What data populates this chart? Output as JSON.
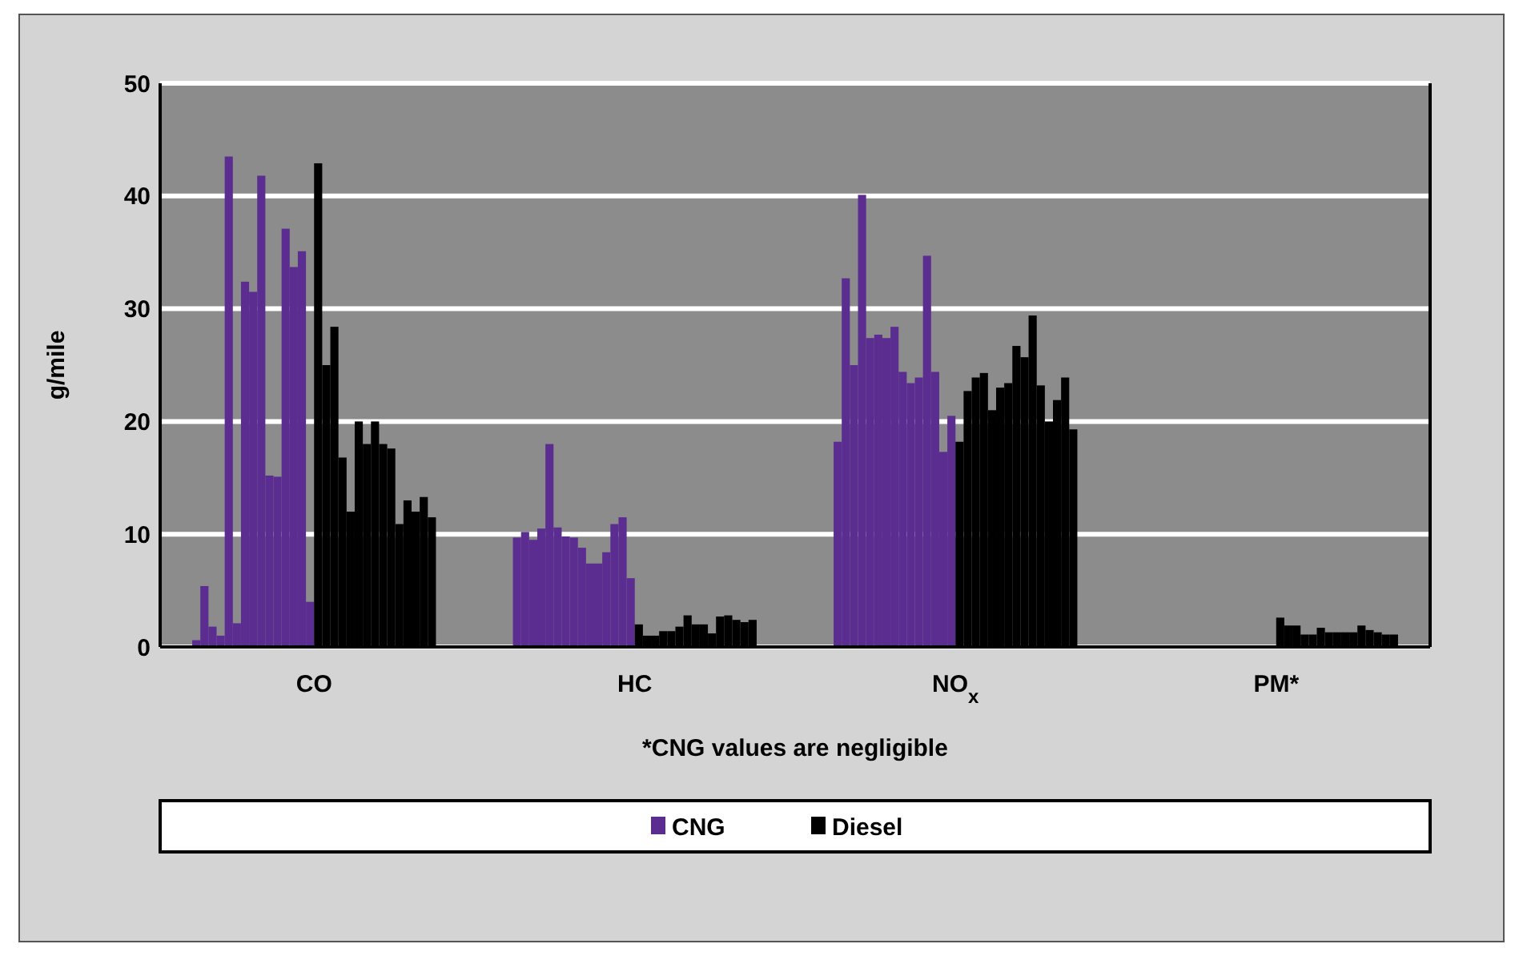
{
  "chart_data": {
    "type": "bar",
    "xlabel": "*CNG values are negligible",
    "ylabel": "g/mile",
    "categories": [
      "CO",
      "HC",
      "NO$_{x}$",
      "PM*"
    ],
    "ylim": [
      0,
      50
    ],
    "yticks": [
      0,
      10,
      20,
      30,
      40,
      50
    ],
    "grid": "y",
    "legend": "bottom",
    "series": [
      {
        "name": "CNG",
        "color": "#5b2d90",
        "values": [
          0.6,
          9.7,
          18.2,
          null
        ]
      },
      {
        "color": "#5b2d90",
        "values": [
          5.4,
          10.2,
          32.7,
          null
        ]
      },
      {
        "color": "#5b2d90",
        "values": [
          1.8,
          9.5,
          25.0,
          null
        ]
      },
      {
        "color": "#5b2d90",
        "values": [
          1.0,
          10.5,
          40.1,
          null
        ]
      },
      {
        "color": "#5b2d90",
        "values": [
          43.5,
          18.0,
          27.4,
          null
        ]
      },
      {
        "color": "#5b2d90",
        "values": [
          2.1,
          10.6,
          27.7,
          null
        ]
      },
      {
        "color": "#5b2d90",
        "values": [
          32.4,
          9.8,
          27.4,
          null
        ]
      },
      {
        "color": "#5b2d90",
        "values": [
          31.5,
          9.7,
          28.4,
          null
        ]
      },
      {
        "color": "#5b2d90",
        "values": [
          41.8,
          8.8,
          24.4,
          null
        ]
      },
      {
        "color": "#5b2d90",
        "values": [
          15.2,
          7.4,
          23.4,
          null
        ]
      },
      {
        "color": "#5b2d90",
        "values": [
          15.1,
          7.4,
          23.9,
          null
        ]
      },
      {
        "color": "#5b2d90",
        "values": [
          37.1,
          8.4,
          34.7,
          null
        ]
      },
      {
        "color": "#5b2d90",
        "values": [
          33.7,
          10.9,
          24.4,
          null
        ]
      },
      {
        "color": "#5b2d90",
        "values": [
          35.1,
          11.5,
          17.3,
          null
        ]
      },
      {
        "color": "#5b2d90",
        "values": [
          4.0,
          6.1,
          20.5,
          null
        ]
      },
      {
        "name": "Diesel",
        "color": "#000000",
        "values": [
          42.9,
          2.0,
          18.2,
          2.6
        ]
      },
      {
        "color": "#000000",
        "values": [
          25.0,
          1.0,
          22.7,
          1.9
        ]
      },
      {
        "color": "#000000",
        "values": [
          28.4,
          1.0,
          23.9,
          1.9
        ]
      },
      {
        "color": "#000000",
        "values": [
          16.8,
          1.4,
          24.3,
          1.1
        ]
      },
      {
        "color": "#000000",
        "values": [
          12.0,
          1.4,
          21.0,
          1.1
        ]
      },
      {
        "color": "#000000",
        "values": [
          20.0,
          1.8,
          23.0,
          1.7
        ]
      },
      {
        "color": "#000000",
        "values": [
          18.0,
          2.8,
          23.4,
          1.3
        ]
      },
      {
        "color": "#000000",
        "values": [
          20.0,
          2.0,
          26.7,
          1.3
        ]
      },
      {
        "color": "#000000",
        "values": [
          18.0,
          2.0,
          25.7,
          1.3
        ]
      },
      {
        "color": "#000000",
        "values": [
          17.6,
          1.2,
          29.4,
          1.3
        ]
      },
      {
        "color": "#000000",
        "values": [
          10.9,
          2.7,
          23.2,
          1.9
        ]
      },
      {
        "color": "#000000",
        "values": [
          13.0,
          2.8,
          20.0,
          1.5
        ]
      },
      {
        "color": "#000000",
        "values": [
          12.0,
          2.4,
          21.9,
          1.3
        ]
      },
      {
        "color": "#000000",
        "values": [
          13.3,
          2.2,
          23.9,
          1.1
        ]
      },
      {
        "color": "#000000",
        "values": [
          11.5,
          2.4,
          19.3,
          1.1
        ]
      }
    ]
  }
}
